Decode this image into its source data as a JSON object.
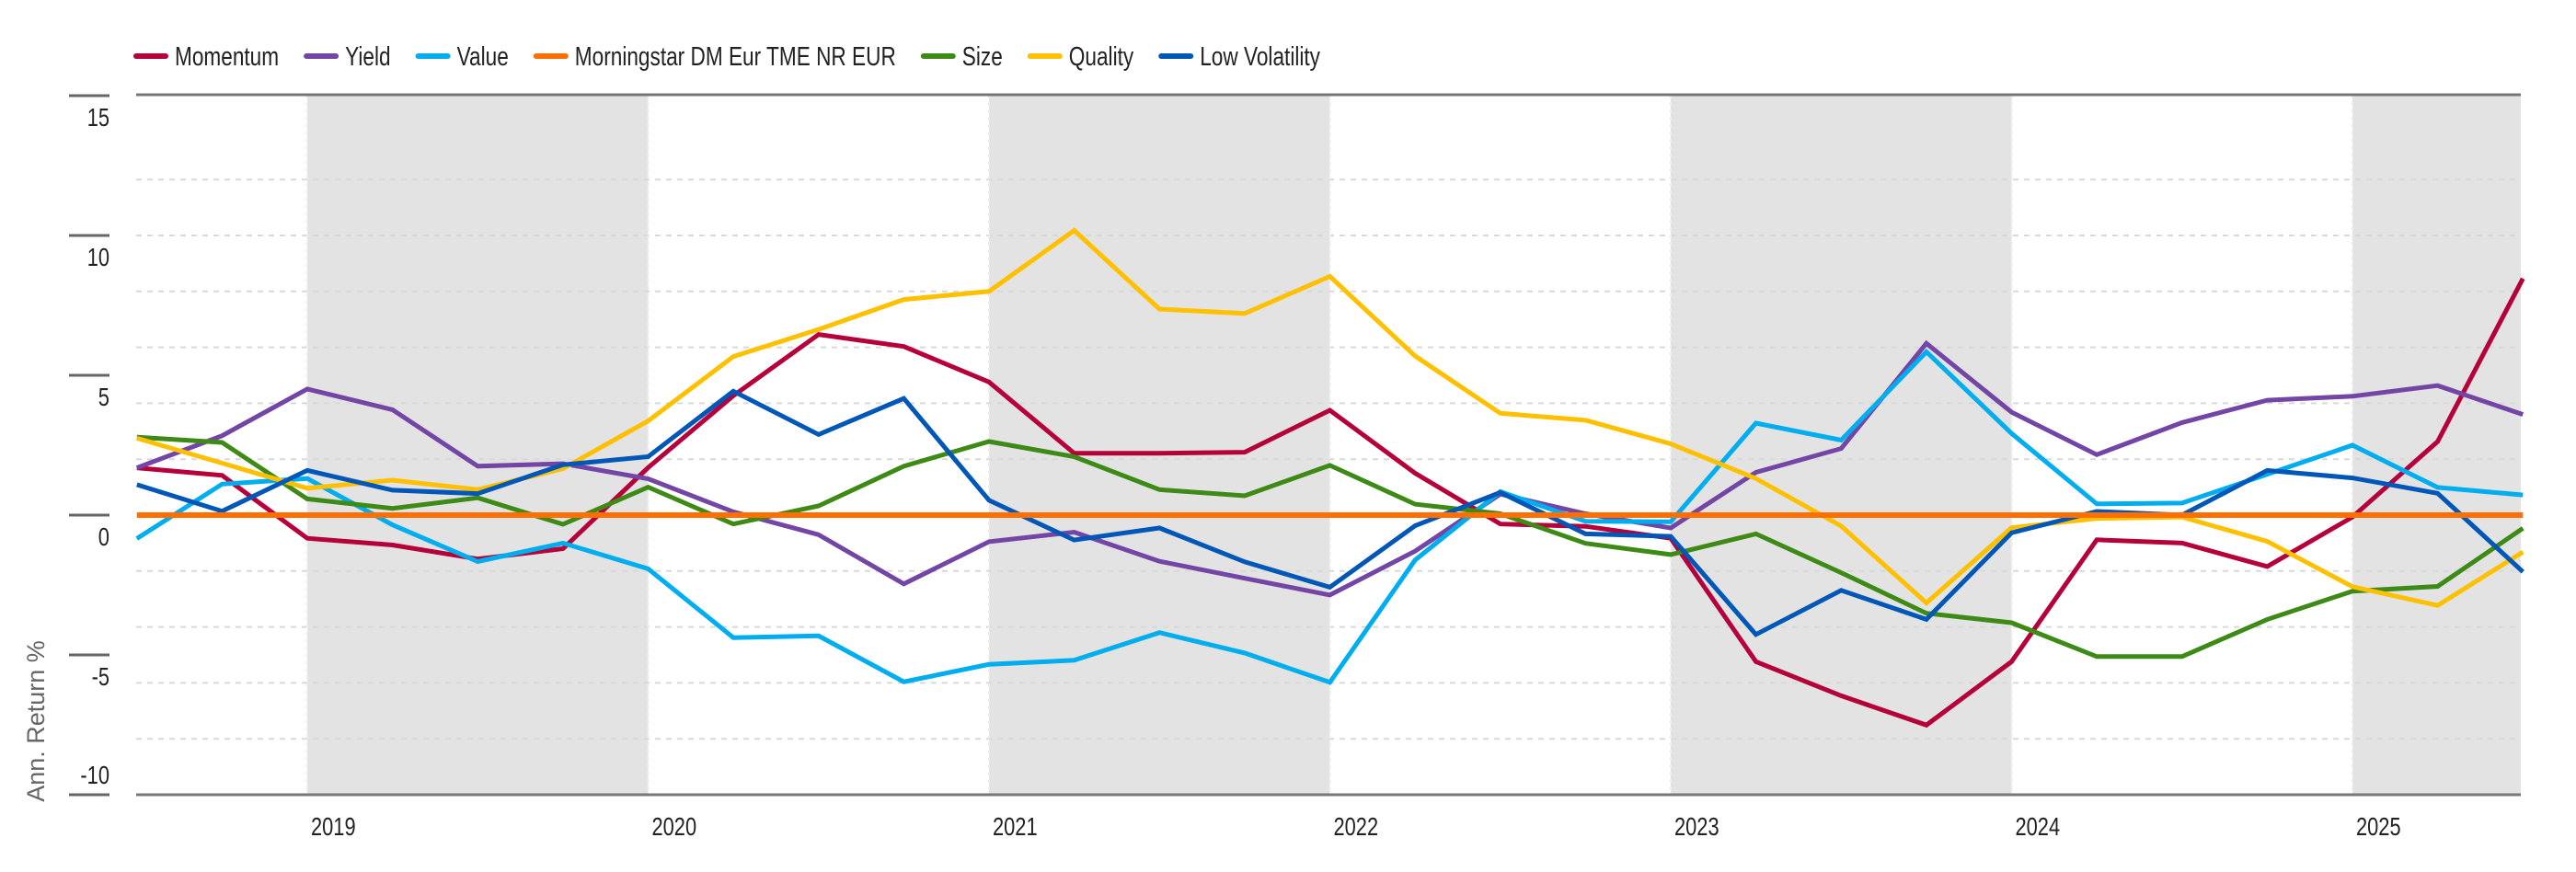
{
  "chart_data": {
    "type": "line",
    "title": "",
    "xlabel": "",
    "ylabel": "Ann. Return %",
    "ylim": [
      -10,
      15
    ],
    "xlim": [
      2018.5,
      2025.5
    ],
    "yticks": [
      15,
      10,
      5,
      0,
      -5,
      -10
    ],
    "ytick_labels": [
      "15",
      "10",
      "5",
      "0",
      "-5",
      "-10"
    ],
    "ygrid": [
      12,
      10,
      8,
      6,
      4,
      2,
      -2,
      -4,
      -6,
      -8
    ],
    "grid": "dotted horizontal",
    "xticks": [
      2019,
      2020,
      2021,
      2022,
      2023,
      2024,
      2025
    ],
    "xtick_labels": [
      "2019",
      "2020",
      "2021",
      "2022",
      "2023",
      "2024",
      "2025"
    ],
    "shaded_years": [
      2019,
      2021,
      2023,
      2025
    ],
    "shade_color": "#e3e3e3",
    "legend_position": "top-left",
    "x": [
      2018.5,
      2018.75,
      2019.0,
      2019.25,
      2019.5,
      2019.75,
      2020.0,
      2020.25,
      2020.5,
      2020.75,
      2021.0,
      2021.25,
      2021.5,
      2021.75,
      2022.0,
      2022.25,
      2022.5,
      2022.75,
      2023.0,
      2023.25,
      2023.5,
      2023.75,
      2024.0,
      2024.25,
      2024.5,
      2024.75,
      2025.0,
      2025.25,
      2025.5
    ],
    "series": [
      {
        "name": "Momentum",
        "color": "#b5003a",
        "values": [
          1.69,
          1.42,
          -0.83,
          -1.07,
          -1.57,
          -1.2,
          1.7,
          4.27,
          6.46,
          6.03,
          4.76,
          2.21,
          2.21,
          2.25,
          3.75,
          1.5,
          -0.32,
          -0.4,
          -0.83,
          -5.24,
          -6.46,
          -7.51,
          -5.24,
          -0.88,
          -1.0,
          -1.84,
          -0.07,
          2.63,
          8.46
        ]
      },
      {
        "name": "Yield",
        "color": "#7346a6",
        "values": [
          1.69,
          2.84,
          4.51,
          3.77,
          1.75,
          1.84,
          1.3,
          0.12,
          -0.7,
          -2.46,
          -0.95,
          -0.61,
          -1.65,
          -2.26,
          -2.86,
          -1.29,
          0.75,
          0.05,
          -0.46,
          1.53,
          2.38,
          6.14,
          3.68,
          2.16,
          3.31,
          4.11,
          4.25,
          4.63,
          3.6
        ]
      },
      {
        "name": "Value",
        "color": "#00aeef",
        "values": [
          -0.84,
          1.11,
          1.31,
          -0.35,
          -1.66,
          -1.0,
          -1.92,
          -4.38,
          -4.32,
          -5.96,
          -5.34,
          -5.19,
          -4.2,
          -4.93,
          -5.98,
          -1.61,
          0.84,
          -0.22,
          -0.24,
          3.29,
          2.68,
          5.84,
          2.92,
          0.4,
          0.43,
          1.46,
          2.5,
          0.99,
          0.72
        ]
      },
      {
        "name": "Morningstar DM Eur TME NR EUR",
        "color": "#ff6f00",
        "values": [
          0,
          0,
          0,
          0,
          0,
          0,
          0,
          0,
          0,
          0,
          0,
          0,
          0,
          0,
          0,
          0,
          0,
          0,
          0,
          0,
          0,
          0,
          0,
          0,
          0,
          0,
          0,
          0,
          0
        ]
      },
      {
        "name": "Size",
        "color": "#3e8a17",
        "values": [
          2.79,
          2.6,
          0.58,
          0.24,
          0.62,
          -0.33,
          1.0,
          -0.32,
          0.33,
          1.75,
          2.63,
          2.09,
          0.91,
          0.69,
          1.78,
          0.39,
          0.05,
          -1.01,
          -1.41,
          -0.67,
          -2.06,
          -3.51,
          -3.85,
          -5.06,
          -5.06,
          -3.73,
          -2.72,
          -2.55,
          -0.47
        ]
      },
      {
        "name": "Quality",
        "color": "#ffc000",
        "values": [
          2.75,
          1.86,
          0.96,
          1.25,
          0.91,
          1.66,
          3.37,
          5.67,
          6.64,
          7.71,
          8.0,
          10.18,
          7.37,
          7.21,
          8.54,
          5.69,
          3.64,
          3.39,
          2.55,
          1.31,
          -0.39,
          -3.14,
          -0.45,
          -0.12,
          -0.07,
          -0.94,
          -2.56,
          -3.23,
          -1.32
        ]
      },
      {
        "name": "Low Volatility",
        "color": "#0057b7",
        "values": [
          1.09,
          0.14,
          1.6,
          0.89,
          0.77,
          1.8,
          2.09,
          4.43,
          2.88,
          4.17,
          0.53,
          -0.89,
          -0.46,
          -1.67,
          -2.58,
          -0.38,
          0.81,
          -0.67,
          -0.76,
          -4.27,
          -2.69,
          -3.73,
          -0.63,
          0.13,
          0.0,
          1.6,
          1.33,
          0.78,
          -2.03
        ]
      }
    ]
  }
}
